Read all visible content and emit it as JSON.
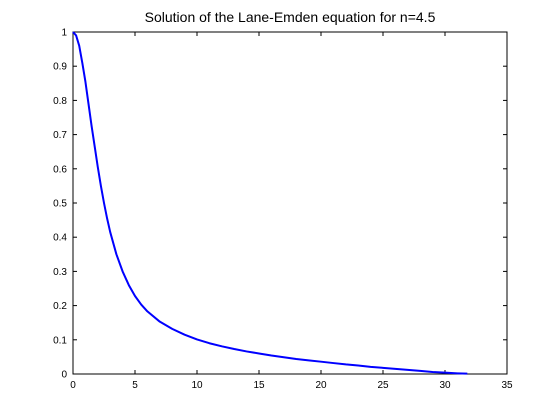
{
  "chart_data": {
    "type": "line",
    "title": "Solution of the Lane-Emden equation for n=4.5",
    "xlabel": "",
    "ylabel": "",
    "xlim": [
      0,
      35
    ],
    "ylim": [
      0,
      1
    ],
    "xticks": [
      0,
      5,
      10,
      15,
      20,
      25,
      30,
      35
    ],
    "yticks": [
      0,
      0.1,
      0.2,
      0.3,
      0.4,
      0.5,
      0.6,
      0.7,
      0.8,
      0.9,
      1
    ],
    "xtick_labels": [
      "0",
      "5",
      "10",
      "15",
      "20",
      "25",
      "30",
      "35"
    ],
    "ytick_labels": [
      "0",
      "0.1",
      "0.2",
      "0.3",
      "0.4",
      "0.5",
      "0.6",
      "0.7",
      "0.8",
      "0.9",
      "1"
    ],
    "grid": false,
    "box": true,
    "series": [
      {
        "color": "#0000ff",
        "x": [
          0,
          0.25,
          0.5,
          0.75,
          1,
          1.25,
          1.5,
          1.75,
          2,
          2.25,
          2.5,
          2.75,
          3,
          3.5,
          4,
          4.5,
          5,
          5.5,
          6,
          7,
          8,
          9,
          10,
          11,
          12,
          13,
          14,
          15,
          16,
          17,
          18,
          19,
          20,
          21,
          22,
          23,
          24,
          25,
          26,
          27,
          28,
          29,
          30,
          31,
          31.8
        ],
        "y": [
          1,
          0.99,
          0.96,
          0.91,
          0.855,
          0.79,
          0.725,
          0.665,
          0.605,
          0.55,
          0.5,
          0.455,
          0.415,
          0.35,
          0.3,
          0.26,
          0.228,
          0.203,
          0.183,
          0.153,
          0.132,
          0.115,
          0.101,
          0.09,
          0.081,
          0.073,
          0.066,
          0.06,
          0.054,
          0.049,
          0.044,
          0.04,
          0.036,
          0.032,
          0.028,
          0.025,
          0.021,
          0.018,
          0.015,
          0.012,
          0.009,
          0.006,
          0.004,
          0.002,
          0.001
        ]
      }
    ]
  }
}
